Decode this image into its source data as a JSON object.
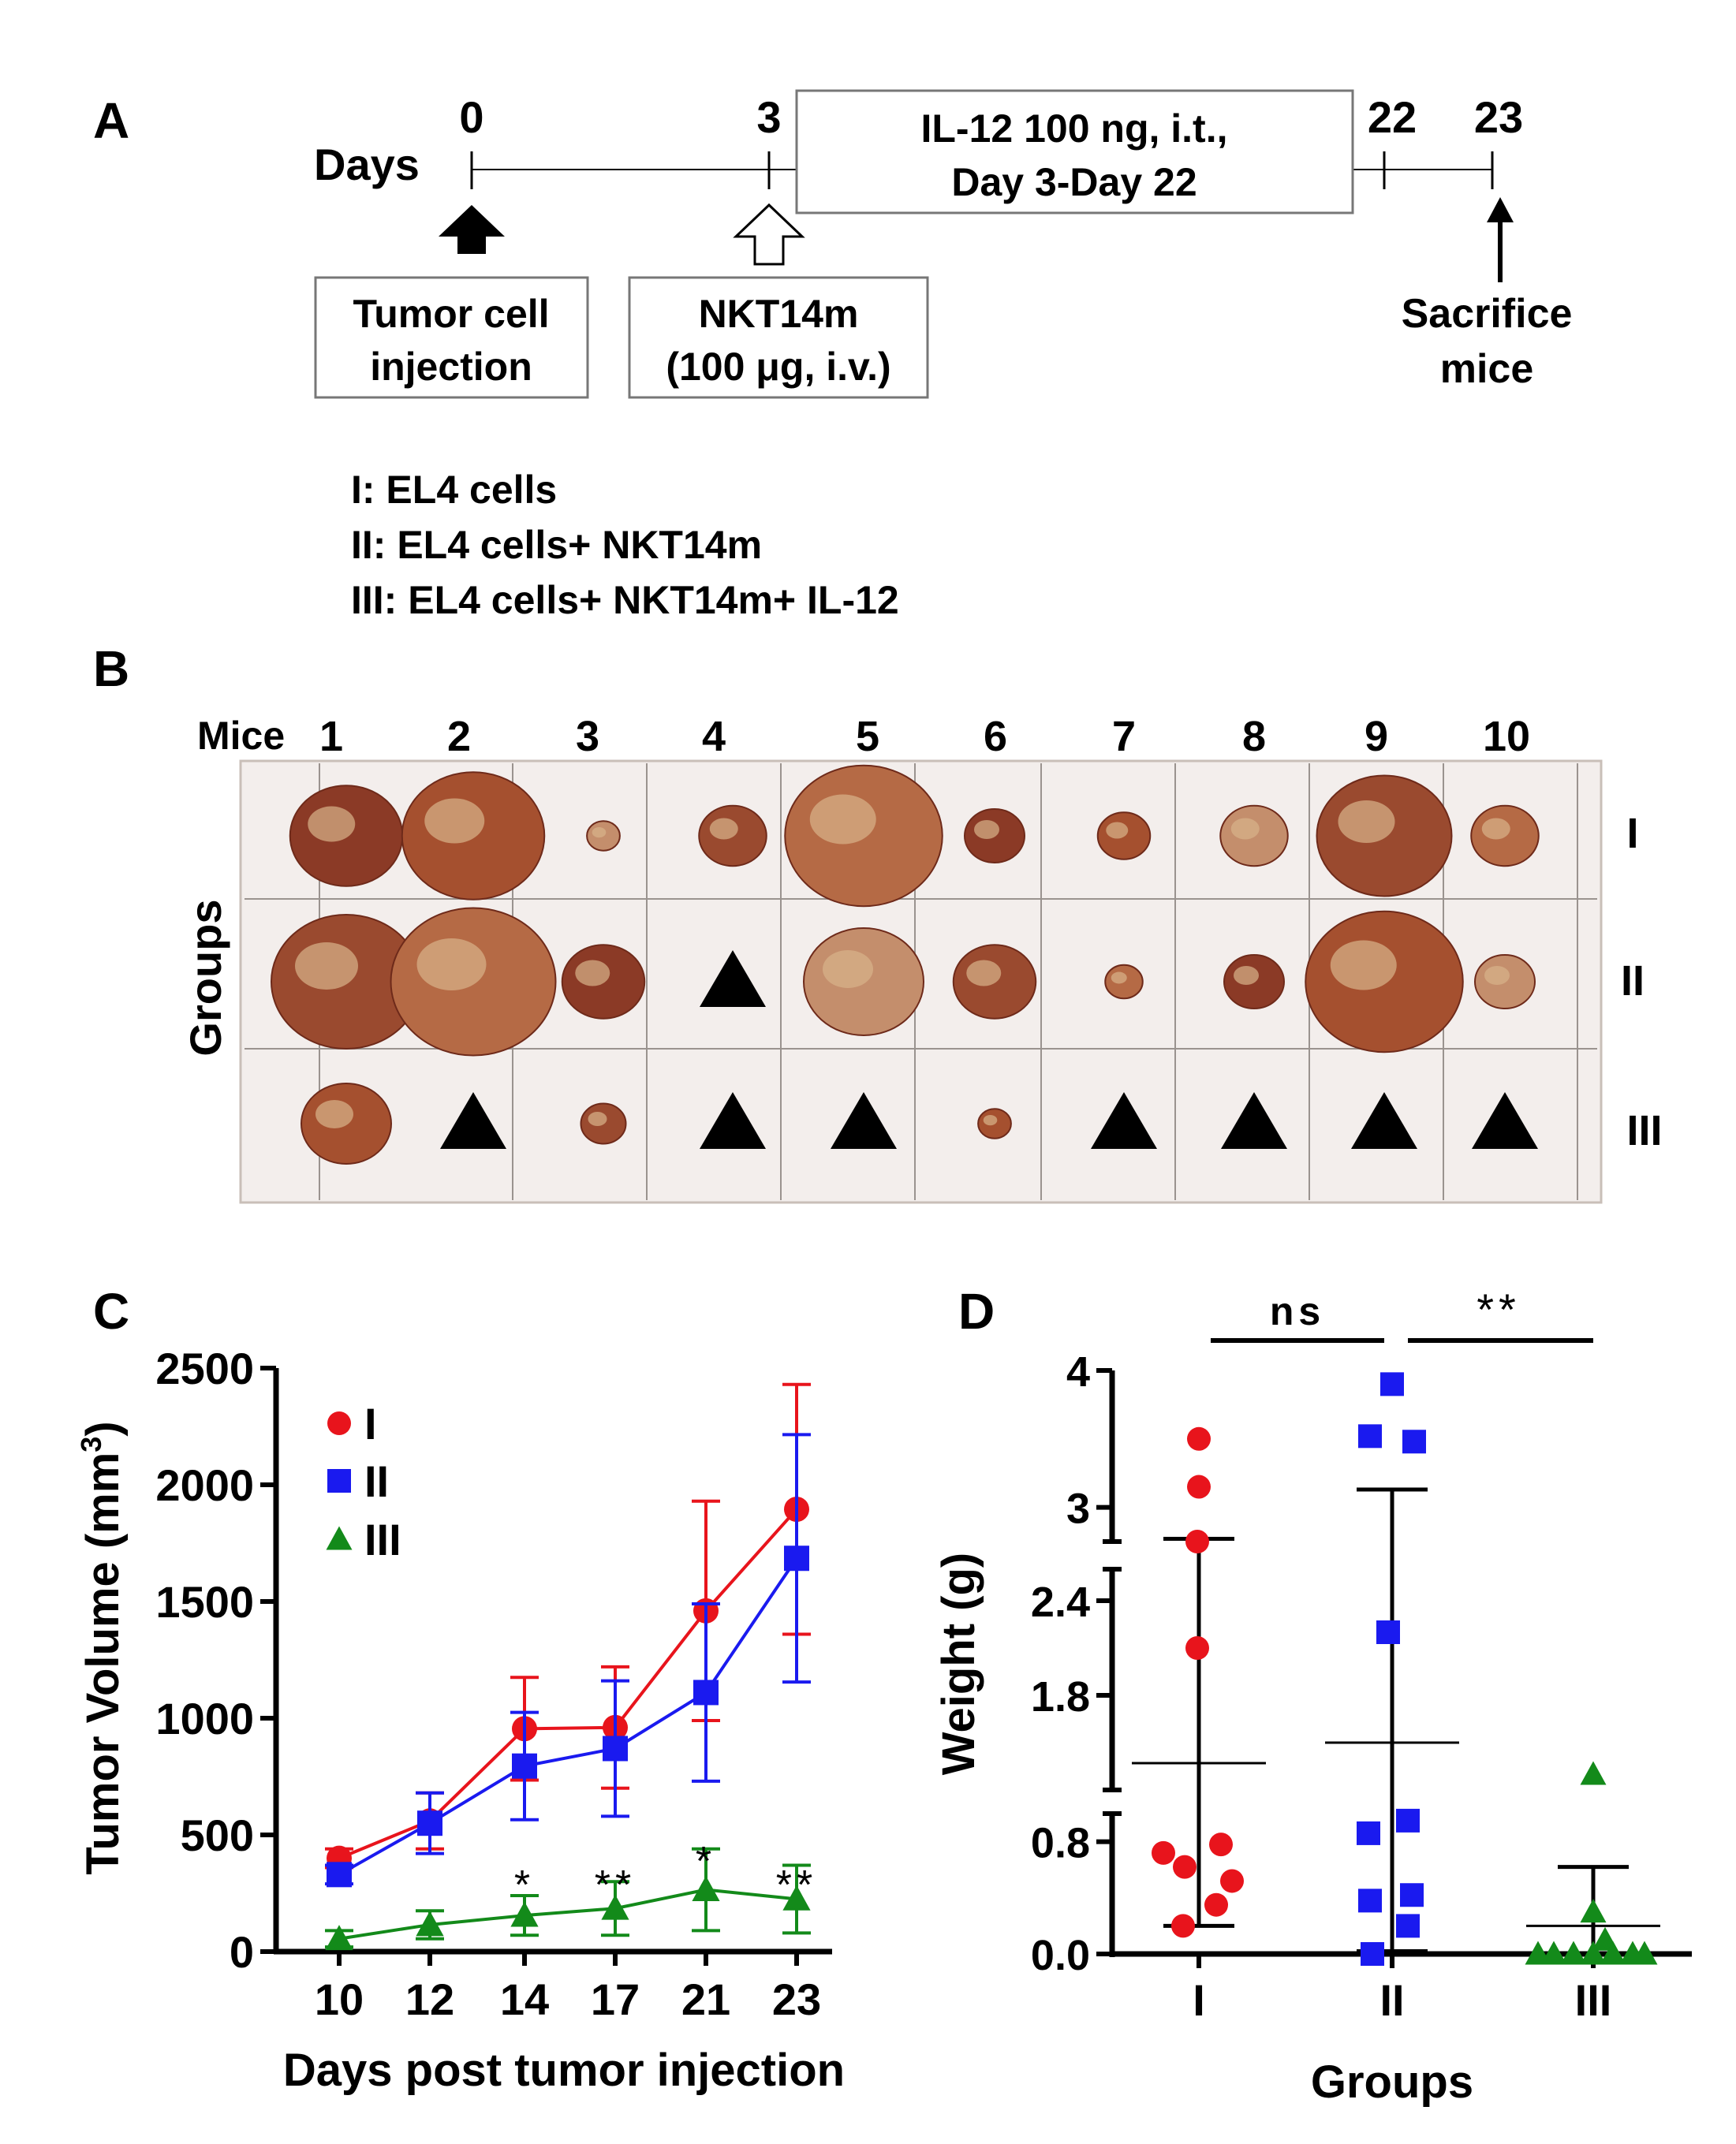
{
  "panel_a": {
    "label": "A",
    "days_label": "Days",
    "day_ticks": [
      "0",
      "3",
      "22",
      "23"
    ],
    "il12_box": [
      "IL-12 100 ng, i.t.,",
      "Day 3-Day 22"
    ],
    "tumor_box": [
      "Tumor cell",
      "injection"
    ],
    "nkt_box": [
      "NKT14m",
      "(100 μg, i.v.)"
    ],
    "sacrifice": [
      "Sacrifice",
      "mice"
    ],
    "groups_legend": [
      "I: EL4 cells",
      "II: EL4 cells+ NKT14m",
      "III: EL4 cells+ NKT14m+ IL-12"
    ]
  },
  "panel_b": {
    "label": "B",
    "mice_label": "Mice",
    "mice": [
      "1",
      "2",
      "3",
      "4",
      "5",
      "6",
      "7",
      "8",
      "9",
      "10"
    ],
    "groups_label": "Groups",
    "rows": [
      "I",
      "II",
      "III"
    ],
    "absent_tumor_cells": {
      "II": [
        "4"
      ],
      "III": [
        "2",
        "4",
        "5",
        "7",
        "8",
        "9",
        "10"
      ]
    }
  },
  "panel_c": {
    "label": "C",
    "chart_data": {
      "type": "line",
      "xlabel": "Days post tumor injection",
      "ylabel": "Tumor Volume (mm3)",
      "ylabel_parts": [
        "Tumor Volume (mm",
        "3",
        ")"
      ],
      "categories": [
        "10",
        "12",
        "14",
        "17",
        "21",
        "23"
      ],
      "ylim": [
        0,
        2500
      ],
      "yticks": [
        "0",
        "500",
        "1000",
        "1500",
        "2000",
        "2500"
      ],
      "legend": "top-left",
      "series": [
        {
          "name": "I",
          "color": "#e8141c",
          "marker": "circle",
          "values": [
            400,
            560,
            955,
            960,
            1460,
            1895
          ],
          "errors": [
            40,
            120,
            220,
            260,
            470,
            535
          ]
        },
        {
          "name": "II",
          "color": "#1a1aef",
          "marker": "square",
          "values": [
            330,
            550,
            795,
            870,
            1110,
            1685
          ],
          "errors": [
            40,
            130,
            230,
            290,
            380,
            530
          ]
        },
        {
          "name": "III",
          "color": "#138a1a",
          "marker": "triangle",
          "values": [
            55,
            115,
            155,
            185,
            265,
            225
          ],
          "errors": [
            35,
            60,
            85,
            115,
            175,
            145
          ]
        }
      ],
      "significance": [
        {
          "category": "14",
          "text": "*"
        },
        {
          "category": "17",
          "text": "**"
        },
        {
          "category": "21",
          "text": "*"
        },
        {
          "category": "23",
          "text": "**"
        }
      ]
    }
  },
  "panel_d": {
    "label": "D",
    "chart_data": {
      "type": "scatter",
      "xlabel": "Groups",
      "ylabel": "Weight (g)",
      "categories": [
        "I",
        "II",
        "III"
      ],
      "yticks": [
        "0.0",
        "0.8",
        "1.8",
        "2.4",
        "3",
        "4"
      ],
      "broken_axis_segments": [
        [
          0,
          1.0
        ],
        [
          1.2,
          2.6
        ],
        [
          2.75,
          4
        ]
      ],
      "groups": [
        {
          "name": "I",
          "color": "#e8141c",
          "marker": "circle",
          "points": [
            3.5,
            3.15,
            2.75,
            2.1,
            0.78,
            0.72,
            0.62,
            0.52,
            0.35,
            0.2
          ],
          "mean": 1.37,
          "sd_upper": 2.77,
          "sd_lower": 0.2
        },
        {
          "name": "II",
          "color": "#1a1aef",
          "marker": "square",
          "points": [
            3.9,
            3.52,
            3.48,
            2.2,
            0.95,
            0.86,
            0.42,
            0.38,
            0.2,
            0.0
          ],
          "mean": 1.5,
          "sd_upper": 3.13,
          "sd_lower": 0.02
        },
        {
          "name": "III",
          "color": "#138a1a",
          "marker": "triangle",
          "points": [
            1.3,
            0.3,
            0.1,
            0.0,
            0.0,
            0.0,
            0.0,
            0.0,
            0.0,
            0.0
          ],
          "mean": 0.2,
          "sd_upper": 0.62,
          "sd_lower": 0.0
        }
      ],
      "comparisons": [
        {
          "between": [
            "I",
            "II"
          ],
          "text": "ns"
        },
        {
          "between": [
            "II",
            "III"
          ],
          "text": "**"
        }
      ]
    }
  }
}
